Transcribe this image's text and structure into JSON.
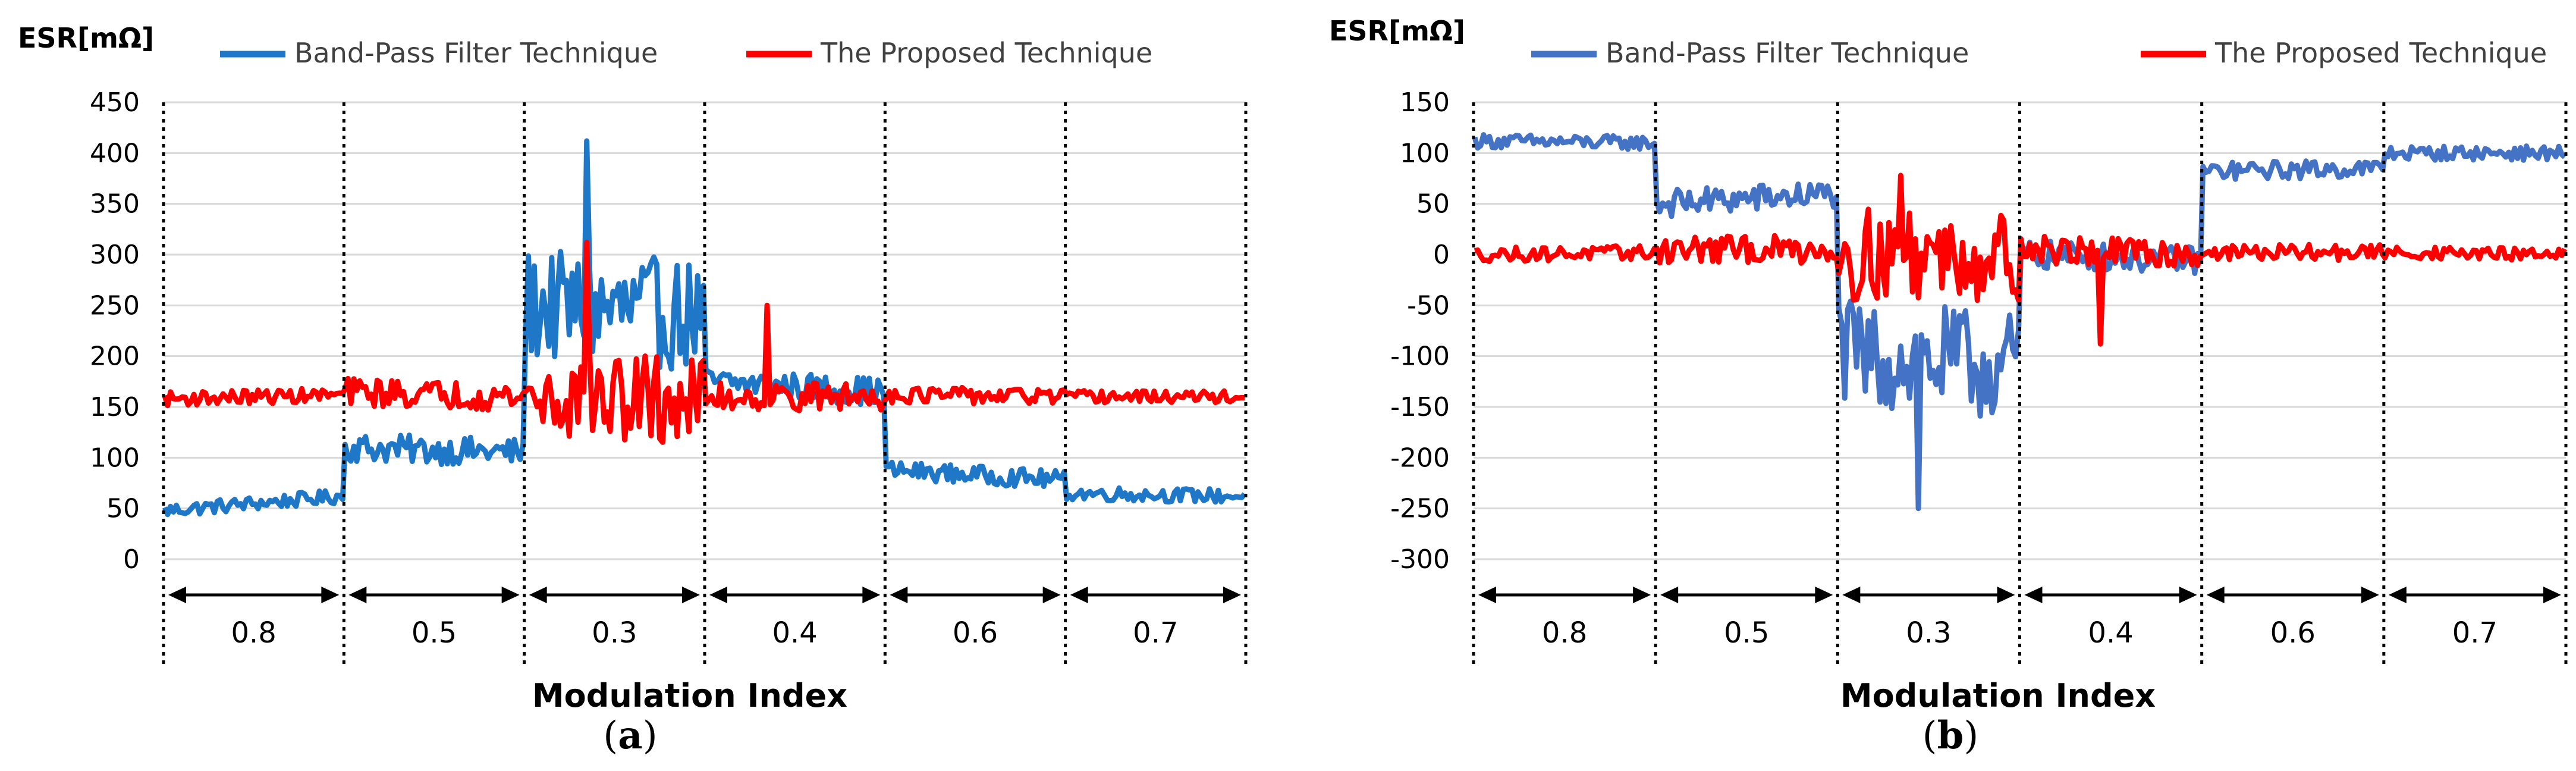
{
  "panels": [
    {
      "letter": "a",
      "label_open": "(",
      "label_close": ")"
    },
    {
      "letter": "b",
      "label_open": "(",
      "label_close": ")"
    }
  ],
  "chart_data": [
    {
      "type": "line",
      "panel": "a",
      "ylabel": "ESR[mΩ]",
      "xlabel": "Modulation Index",
      "ylim": [
        0,
        450
      ],
      "yticks": [
        0,
        50,
        100,
        150,
        200,
        250,
        300,
        350,
        400,
        450
      ],
      "grid": "horizontal",
      "legend_position": "top",
      "segments": [
        "0.8",
        "0.5",
        "0.3",
        "0.4",
        "0.6",
        "0.7"
      ],
      "series": [
        {
          "name": "Band-Pass Filter Technique",
          "color": "#1f77c8",
          "segment_levels": [
            {
              "segment": "0.8",
              "start": 48,
              "end": 62,
              "noise": 7
            },
            {
              "segment": "0.5",
              "start": 110,
              "end": 105,
              "noise": 14
            },
            {
              "segment": "0.3",
              "start": 250,
              "end": 240,
              "noise": 55,
              "peak": 412
            },
            {
              "segment": "0.4",
              "start": 175,
              "end": 165,
              "noise": 14
            },
            {
              "segment": "0.6",
              "start": 88,
              "end": 78,
              "noise": 9
            },
            {
              "segment": "0.7",
              "start": 65,
              "end": 62,
              "noise": 7
            }
          ]
        },
        {
          "name": "The Proposed Technique",
          "color": "#ff0000",
          "segment_levels": [
            {
              "segment": "0.8",
              "start": 158,
              "end": 162,
              "noise": 7
            },
            {
              "segment": "0.5",
              "start": 165,
              "end": 160,
              "noise": 14
            },
            {
              "segment": "0.3",
              "start": 160,
              "end": 155,
              "noise": 45,
              "peak": 312
            },
            {
              "segment": "0.4",
              "start": 160,
              "end": 160,
              "noise": 14,
              "peak": 250
            },
            {
              "segment": "0.6",
              "start": 162,
              "end": 160,
              "noise": 8
            },
            {
              "segment": "0.7",
              "start": 160,
              "end": 160,
              "noise": 6
            }
          ]
        }
      ]
    },
    {
      "type": "line",
      "panel": "b",
      "ylabel": "ESR[mΩ]",
      "xlabel": "Modulation Index",
      "ylim": [
        -300,
        150
      ],
      "yticks": [
        -300,
        -250,
        -200,
        -150,
        -100,
        -50,
        0,
        50,
        100,
        150
      ],
      "grid": "horizontal",
      "legend_position": "top",
      "segments": [
        "0.8",
        "0.5",
        "0.3",
        "0.4",
        "0.6",
        "0.7"
      ],
      "series": [
        {
          "name": "Band-Pass Filter Technique",
          "color": "#4472c4",
          "segment_levels": [
            {
              "segment": "0.8",
              "start": 112,
              "end": 110,
              "noise": 7
            },
            {
              "segment": "0.5",
              "start": 50,
              "end": 60,
              "noise": 14
            },
            {
              "segment": "0.3",
              "start": -100,
              "end": -110,
              "noise": 55,
              "trough": -250
            },
            {
              "segment": "0.4",
              "start": 0,
              "end": -5,
              "noise": 14
            },
            {
              "segment": "0.6",
              "start": 82,
              "end": 85,
              "noise": 9
            },
            {
              "segment": "0.7",
              "start": 100,
              "end": 100,
              "noise": 7
            }
          ]
        },
        {
          "name": "The Proposed Technique",
          "color": "#ff0000",
          "segment_levels": [
            {
              "segment": "0.8",
              "start": 0,
              "end": 2,
              "noise": 7
            },
            {
              "segment": "0.5",
              "start": 5,
              "end": 5,
              "noise": 14
            },
            {
              "segment": "0.3",
              "start": 0,
              "end": 0,
              "noise": 45,
              "peak": 78
            },
            {
              "segment": "0.4",
              "start": 5,
              "end": 0,
              "noise": 14,
              "trough": -88
            },
            {
              "segment": "0.6",
              "start": 2,
              "end": 2,
              "noise": 8
            },
            {
              "segment": "0.7",
              "start": 2,
              "end": 0,
              "noise": 6
            }
          ]
        }
      ]
    }
  ]
}
